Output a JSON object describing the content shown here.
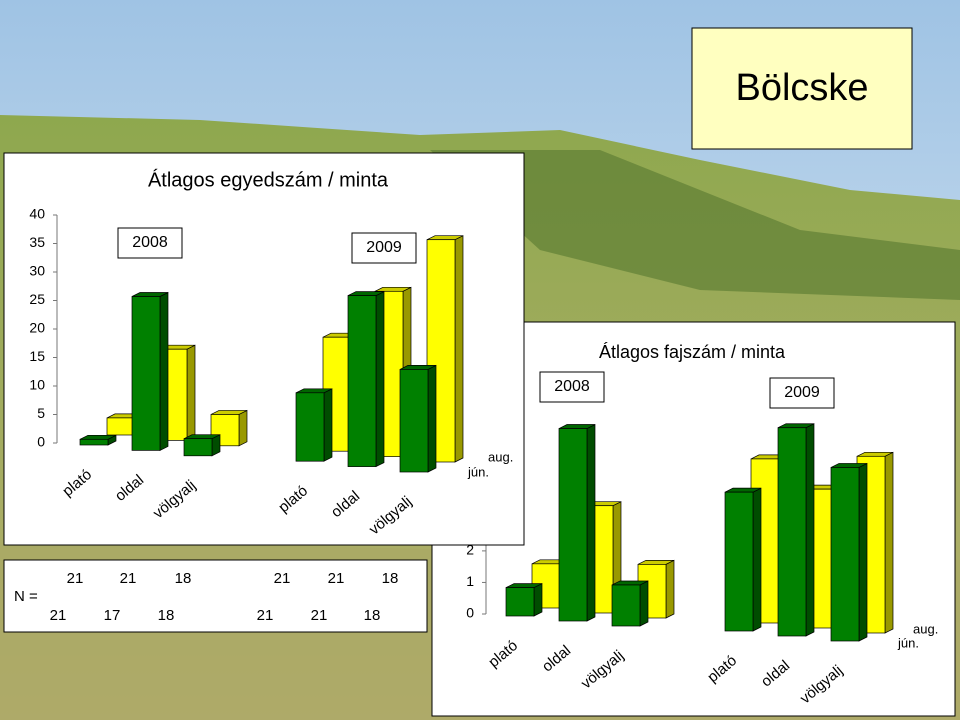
{
  "title": "Bölcske",
  "n_table": {
    "label": "N =",
    "rows": [
      [
        21,
        21,
        18,
        21,
        21,
        18
      ],
      [
        21,
        17,
        18,
        21,
        21,
        18
      ]
    ]
  },
  "chart_data": [
    {
      "type": "bar",
      "title": "Átlagos egyedszám / minta",
      "annotations": [
        "2008",
        "2009"
      ],
      "categories": [
        "plató",
        "oldal",
        "völgyalj",
        "plató",
        "oldal",
        "völgyalj"
      ],
      "series": [
        {
          "name": "jún.",
          "color": "#008000",
          "values": [
            1,
            27,
            3,
            12,
            30,
            18
          ]
        },
        {
          "name": "aug.",
          "color": "#ffff00",
          "values": [
            3,
            16,
            5.5,
            20,
            29,
            39
          ]
        }
      ],
      "ylim": [
        0,
        40
      ],
      "yticks": [
        0,
        5,
        10,
        15,
        20,
        25,
        30,
        35,
        40
      ],
      "grid": false
    },
    {
      "type": "bar",
      "title": "Átlagos fajszám / minta",
      "annotations": [
        "2008",
        "2009"
      ],
      "categories": [
        "plató",
        "oldal",
        "völgyalj",
        "plató",
        "oldal",
        "völgyalj"
      ],
      "series": [
        {
          "name": "jún.",
          "color": "#008000",
          "values": [
            0.9,
            6.1,
            1.3,
            4.4,
            6.6,
            5.5
          ]
        },
        {
          "name": "aug.",
          "color": "#ffff00",
          "values": [
            1.4,
            3.4,
            1.7,
            5.2,
            4.4,
            5.6
          ]
        }
      ],
      "ylim": [
        0,
        9
      ],
      "yticks": [
        0,
        1,
        2
      ],
      "grid": false
    }
  ]
}
